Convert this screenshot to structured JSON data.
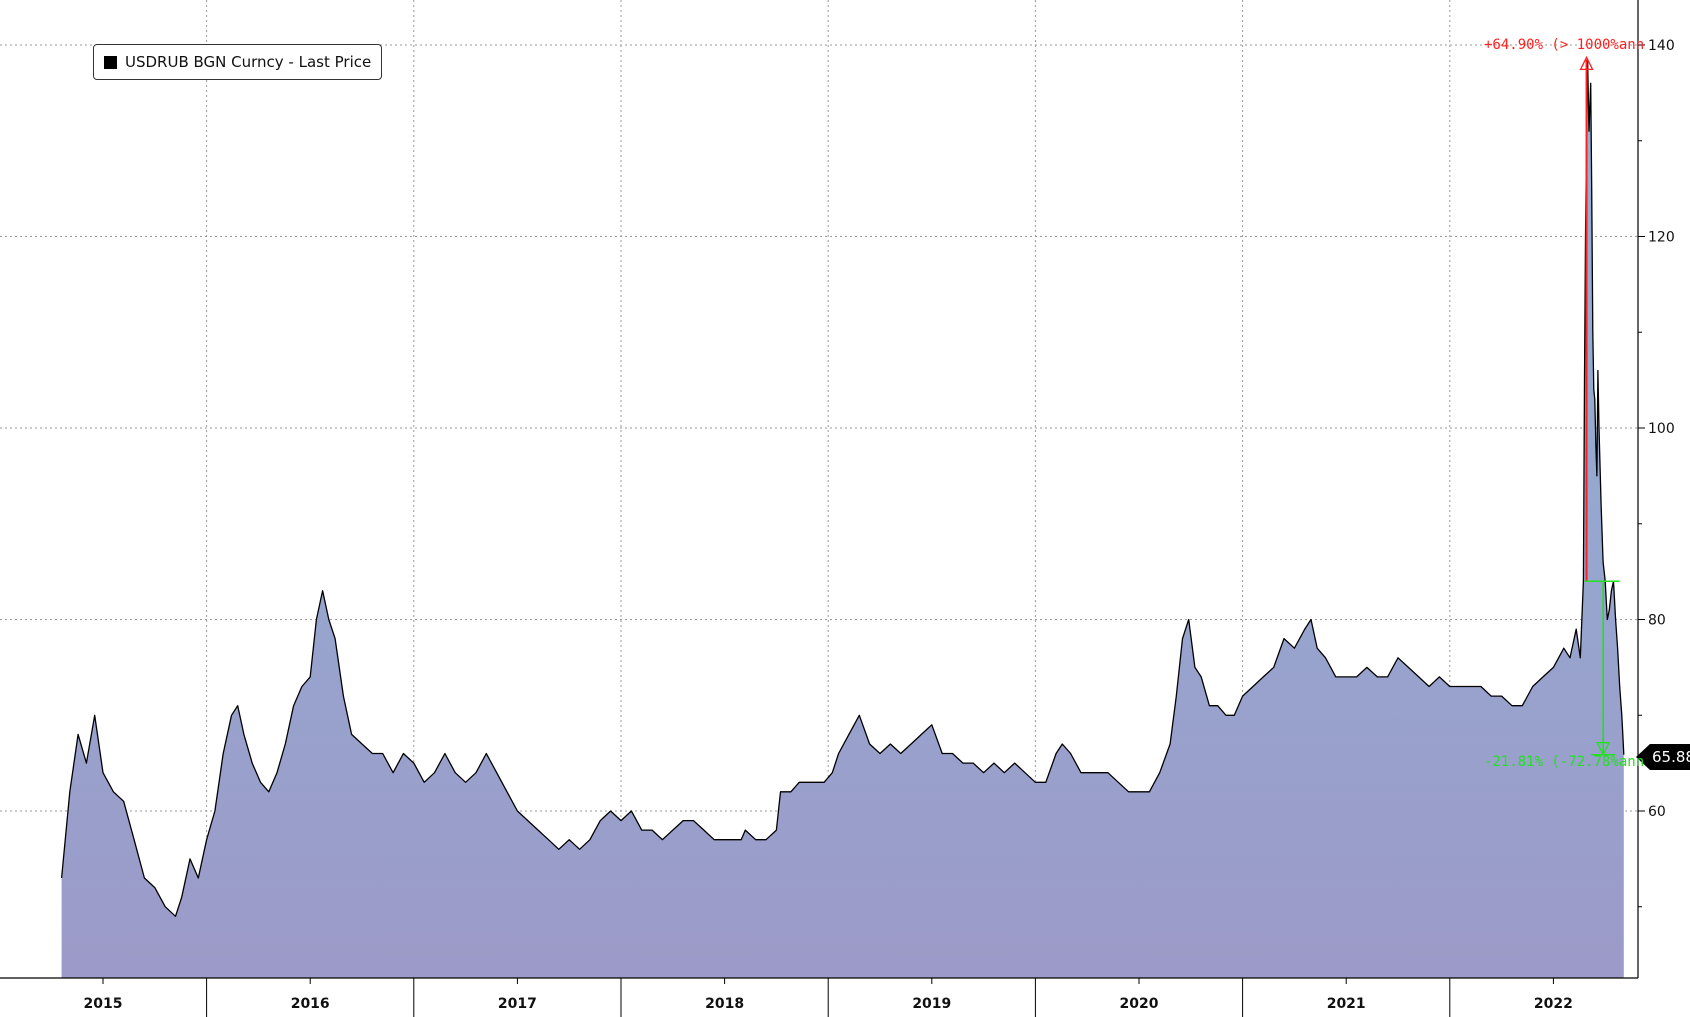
{
  "chart_data": {
    "type": "area",
    "title": "",
    "legend": "USDRUB BGN Curncy - Last Price",
    "legend_position": "top-left",
    "xlabel": "",
    "ylabel": "",
    "x_tick_labels": [
      "2015",
      "2016",
      "2017",
      "2018",
      "2019",
      "2020",
      "2021",
      "2022"
    ],
    "y_ticks": [
      60,
      80,
      100,
      120,
      140
    ],
    "ylim": [
      43,
      145
    ],
    "grid": true,
    "last_price": "65.88",
    "colors": {
      "line": "#000000",
      "fill_top": "#8fb4d6",
      "fill_bottom": "#9c9ac8",
      "up_annotation": "#ff2020",
      "down_annotation": "#22e022"
    },
    "annotations": [
      {
        "text": "+64.90% (> 1000%ann",
        "from": 84.0,
        "to": 138.5,
        "direction": "up"
      },
      {
        "text": "-21.81% (-72.78%ann",
        "from": 84.0,
        "to": 65.88,
        "direction": "down"
      }
    ],
    "series": [
      {
        "points": [
          [
            2014.8,
            53
          ],
          [
            2014.84,
            62
          ],
          [
            2014.88,
            68
          ],
          [
            2014.92,
            65
          ],
          [
            2014.96,
            70
          ],
          [
            2015.0,
            64
          ],
          [
            2015.05,
            62
          ],
          [
            2015.1,
            61
          ],
          [
            2015.15,
            57
          ],
          [
            2015.2,
            53
          ],
          [
            2015.25,
            52
          ],
          [
            2015.3,
            50
          ],
          [
            2015.35,
            49
          ],
          [
            2015.38,
            51
          ],
          [
            2015.42,
            55
          ],
          [
            2015.46,
            53
          ],
          [
            2015.5,
            57
          ],
          [
            2015.54,
            60
          ],
          [
            2015.58,
            66
          ],
          [
            2015.62,
            70
          ],
          [
            2015.65,
            71
          ],
          [
            2015.68,
            68
          ],
          [
            2015.72,
            65
          ],
          [
            2015.76,
            63
          ],
          [
            2015.8,
            62
          ],
          [
            2015.84,
            64
          ],
          [
            2015.88,
            67
          ],
          [
            2015.92,
            71
          ],
          [
            2015.96,
            73
          ],
          [
            2016.0,
            74
          ],
          [
            2016.03,
            80
          ],
          [
            2016.06,
            83
          ],
          [
            2016.09,
            80
          ],
          [
            2016.12,
            78
          ],
          [
            2016.16,
            72
          ],
          [
            2016.2,
            68
          ],
          [
            2016.25,
            67
          ],
          [
            2016.3,
            66
          ],
          [
            2016.35,
            66
          ],
          [
            2016.4,
            64
          ],
          [
            2016.45,
            66
          ],
          [
            2016.5,
            65
          ],
          [
            2016.55,
            63
          ],
          [
            2016.6,
            64
          ],
          [
            2016.65,
            66
          ],
          [
            2016.7,
            64
          ],
          [
            2016.75,
            63
          ],
          [
            2016.8,
            64
          ],
          [
            2016.85,
            66
          ],
          [
            2016.9,
            64
          ],
          [
            2016.95,
            62
          ],
          [
            2017.0,
            60
          ],
          [
            2017.05,
            59
          ],
          [
            2017.1,
            58
          ],
          [
            2017.15,
            57
          ],
          [
            2017.2,
            56
          ],
          [
            2017.25,
            57
          ],
          [
            2017.3,
            56
          ],
          [
            2017.35,
            57
          ],
          [
            2017.4,
            59
          ],
          [
            2017.45,
            60
          ],
          [
            2017.5,
            59
          ],
          [
            2017.55,
            60
          ],
          [
            2017.6,
            58
          ],
          [
            2017.65,
            58
          ],
          [
            2017.7,
            57
          ],
          [
            2017.75,
            58
          ],
          [
            2017.8,
            59
          ],
          [
            2017.85,
            59
          ],
          [
            2017.9,
            58
          ],
          [
            2017.95,
            57
          ],
          [
            2018.0,
            57
          ],
          [
            2018.05,
            57
          ],
          [
            2018.08,
            57
          ],
          [
            2018.1,
            58
          ],
          [
            2018.15,
            57
          ],
          [
            2018.2,
            57
          ],
          [
            2018.25,
            58
          ],
          [
            2018.27,
            62
          ],
          [
            2018.32,
            62
          ],
          [
            2018.36,
            63
          ],
          [
            2018.42,
            63
          ],
          [
            2018.48,
            63
          ],
          [
            2018.52,
            64
          ],
          [
            2018.55,
            66
          ],
          [
            2018.6,
            68
          ],
          [
            2018.65,
            70
          ],
          [
            2018.7,
            67
          ],
          [
            2018.75,
            66
          ],
          [
            2018.8,
            67
          ],
          [
            2018.85,
            66
          ],
          [
            2018.9,
            67
          ],
          [
            2018.95,
            68
          ],
          [
            2019.0,
            69
          ],
          [
            2019.05,
            66
          ],
          [
            2019.1,
            66
          ],
          [
            2019.15,
            65
          ],
          [
            2019.2,
            65
          ],
          [
            2019.25,
            64
          ],
          [
            2019.3,
            65
          ],
          [
            2019.35,
            64
          ],
          [
            2019.4,
            65
          ],
          [
            2019.45,
            64
          ],
          [
            2019.5,
            63
          ],
          [
            2019.55,
            63
          ],
          [
            2019.6,
            66
          ],
          [
            2019.63,
            67
          ],
          [
            2019.67,
            66
          ],
          [
            2019.72,
            64
          ],
          [
            2019.76,
            64
          ],
          [
            2019.8,
            64
          ],
          [
            2019.85,
            64
          ],
          [
            2019.9,
            63
          ],
          [
            2019.95,
            62
          ],
          [
            2020.0,
            62
          ],
          [
            2020.05,
            62
          ],
          [
            2020.1,
            64
          ],
          [
            2020.15,
            67
          ],
          [
            2020.18,
            72
          ],
          [
            2020.21,
            78
          ],
          [
            2020.24,
            80
          ],
          [
            2020.27,
            75
          ],
          [
            2020.3,
            74
          ],
          [
            2020.34,
            71
          ],
          [
            2020.38,
            71
          ],
          [
            2020.42,
            70
          ],
          [
            2020.46,
            70
          ],
          [
            2020.5,
            72
          ],
          [
            2020.55,
            73
          ],
          [
            2020.6,
            74
          ],
          [
            2020.65,
            75
          ],
          [
            2020.7,
            78
          ],
          [
            2020.75,
            77
          ],
          [
            2020.8,
            79
          ],
          [
            2020.83,
            80
          ],
          [
            2020.86,
            77
          ],
          [
            2020.9,
            76
          ],
          [
            2020.95,
            74
          ],
          [
            2021.0,
            74
          ],
          [
            2021.05,
            74
          ],
          [
            2021.1,
            75
          ],
          [
            2021.15,
            74
          ],
          [
            2021.2,
            74
          ],
          [
            2021.25,
            76
          ],
          [
            2021.3,
            75
          ],
          [
            2021.35,
            74
          ],
          [
            2021.4,
            73
          ],
          [
            2021.45,
            74
          ],
          [
            2021.5,
            73
          ],
          [
            2021.55,
            73
          ],
          [
            2021.6,
            73
          ],
          [
            2021.65,
            73
          ],
          [
            2021.7,
            72
          ],
          [
            2021.75,
            72
          ],
          [
            2021.8,
            71
          ],
          [
            2021.85,
            71
          ],
          [
            2021.9,
            73
          ],
          [
            2021.95,
            74
          ],
          [
            2022.0,
            75
          ],
          [
            2022.05,
            77
          ],
          [
            2022.08,
            76
          ],
          [
            2022.11,
            79
          ],
          [
            2022.13,
            76
          ],
          [
            2022.145,
            84
          ],
          [
            2022.15,
            105
          ],
          [
            2022.155,
            120
          ],
          [
            2022.16,
            130
          ],
          [
            2022.165,
            138.5
          ],
          [
            2022.172,
            131
          ],
          [
            2022.18,
            136
          ],
          [
            2022.185,
            125
          ],
          [
            2022.19,
            110
          ],
          [
            2022.195,
            104
          ],
          [
            2022.2,
            103
          ],
          [
            2022.205,
            98
          ],
          [
            2022.21,
            95
          ],
          [
            2022.215,
            106
          ],
          [
            2022.22,
            100
          ],
          [
            2022.23,
            92
          ],
          [
            2022.24,
            86
          ],
          [
            2022.25,
            84
          ],
          [
            2022.26,
            80
          ],
          [
            2022.27,
            81
          ],
          [
            2022.28,
            83
          ],
          [
            2022.29,
            84
          ],
          [
            2022.3,
            80
          ],
          [
            2022.31,
            77
          ],
          [
            2022.32,
            73
          ],
          [
            2022.33,
            70
          ],
          [
            2022.335,
            68
          ],
          [
            2022.34,
            65.88
          ]
        ]
      }
    ]
  }
}
